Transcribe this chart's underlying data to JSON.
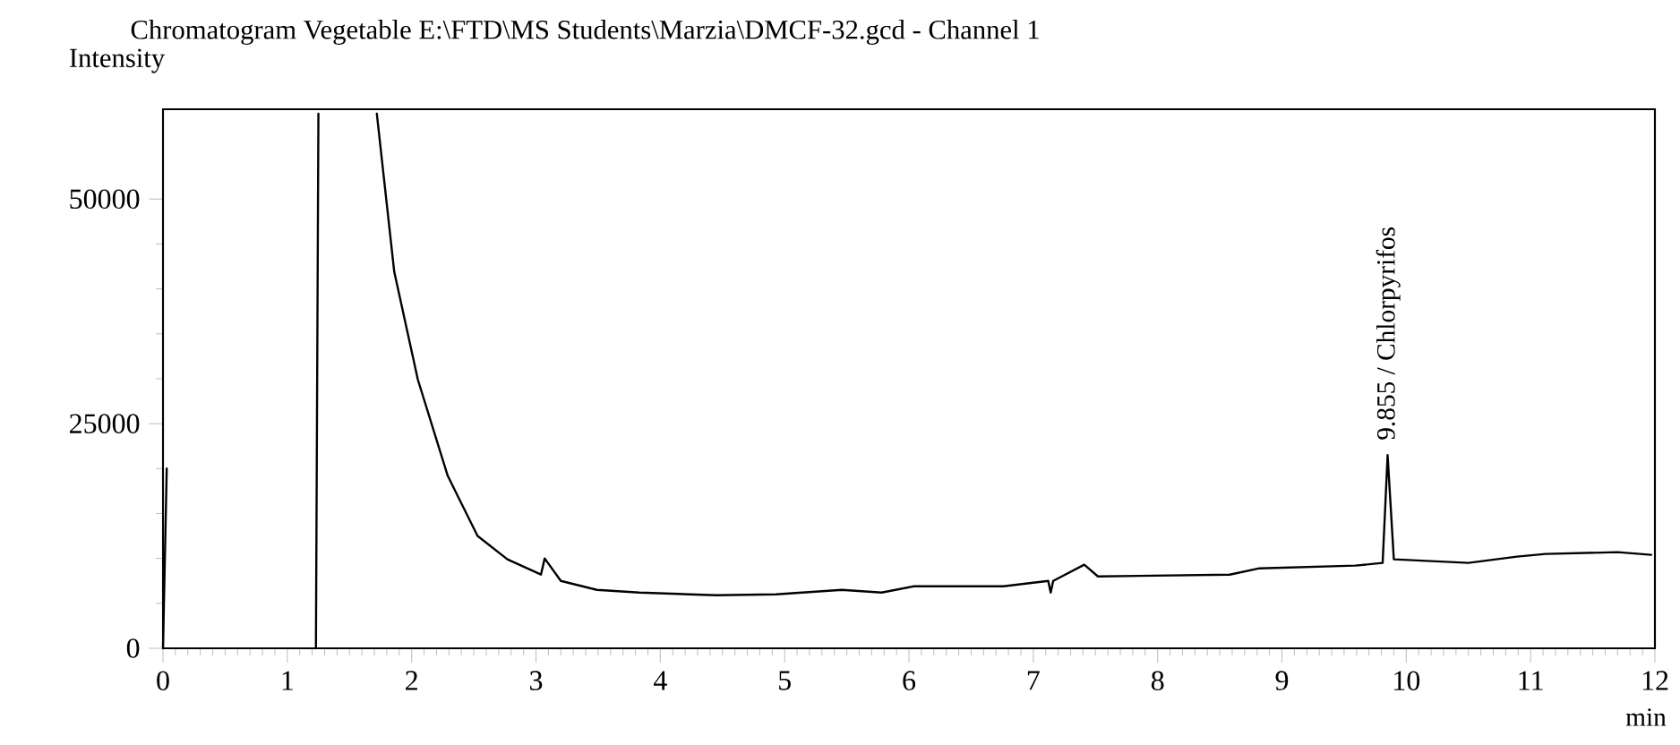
{
  "chart_data": {
    "type": "line",
    "title": "Chromatogram Vegetable E:\\FTD\\MS Students\\Marzia\\DMCF-32.gcd - Channel 1",
    "xlabel": "min",
    "ylabel": "Intensity",
    "x": [
      0,
      0.03,
      0.5,
      1.23,
      1.25,
      1.5,
      1.72,
      1.86,
      2.05,
      2.29,
      2.53,
      2.77,
      3.04,
      3.07,
      3.2,
      3.49,
      3.83,
      4.45,
      4.93,
      5.46,
      5.78,
      6.04,
      6.76,
      7.12,
      7.14,
      7.16,
      7.41,
      7.52,
      8.58,
      8.82,
      9.59,
      9.81,
      9.85,
      9.9,
      10.5,
      10.89,
      11.12,
      11.7,
      11.97
    ],
    "values": [
      0,
      20000,
      null,
      0,
      59500,
      null,
      59500,
      41900,
      29900,
      19200,
      12500,
      9900,
      8200,
      10000,
      7500,
      6500,
      6200,
      5900,
      6000,
      6500,
      6200,
      6900,
      6900,
      7500,
      6200,
      7500,
      9300,
      8000,
      8200,
      8900,
      9200,
      9500,
      21500,
      9900,
      9500,
      10200,
      10500,
      10700,
      10400
    ],
    "color": "#000000",
    "xlim": [
      0,
      12
    ],
    "ylim": [
      0,
      60000
    ],
    "xticks": [
      0,
      1,
      2,
      3,
      4,
      5,
      6,
      7,
      8,
      9,
      10,
      11,
      12
    ],
    "yticks": [
      0,
      25000,
      50000
    ],
    "annotations": [
      {
        "text": "9.855 / Chlorpyrifos",
        "x": 9.855,
        "y": 21500
      }
    ]
  }
}
